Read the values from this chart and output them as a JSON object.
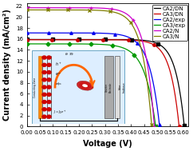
{
  "title": "",
  "xlabel": "Voltage (V)",
  "ylabel": "Current density (mA/cm²)",
  "xlim": [
    0.0,
    0.62
  ],
  "ylim": [
    0.0,
    22.5
  ],
  "xticks": [
    0.0,
    0.05,
    0.1,
    0.15,
    0.2,
    0.25,
    0.3,
    0.35,
    0.4,
    0.45,
    0.5,
    0.55,
    0.6
  ],
  "yticks": [
    0,
    2,
    4,
    6,
    8,
    10,
    12,
    14,
    16,
    18,
    20,
    22
  ],
  "curves": {
    "CA2/DN": {
      "color": "#000000",
      "Jsc": 15.9,
      "Voc": 0.605,
      "n": 1.3,
      "marker": "s"
    },
    "CA3/DN": {
      "color": "#cc0000",
      "Jsc": 15.85,
      "Voc": 0.585,
      "n": 1.32,
      "marker": "o"
    },
    "CA2/exp": {
      "color": "#0000ee",
      "Jsc": 17.1,
      "Voc": 0.51,
      "n": 1.5,
      "marker": "^"
    },
    "CA3/exp": {
      "color": "#009900",
      "Jsc": 15.1,
      "Voc": 0.495,
      "n": 1.6,
      "marker": "D"
    },
    "CA2/N": {
      "color": "#cc00cc",
      "Jsc": 21.7,
      "Voc": 0.49,
      "n": 1.4,
      "marker": "+"
    },
    "CA3/N": {
      "color": "#808000",
      "Jsc": 21.3,
      "Voc": 0.48,
      "n": 1.42,
      "marker": "x"
    }
  },
  "legend_fontsize": 5.0,
  "axis_label_fontsize": 7,
  "tick_fontsize": 5.0
}
